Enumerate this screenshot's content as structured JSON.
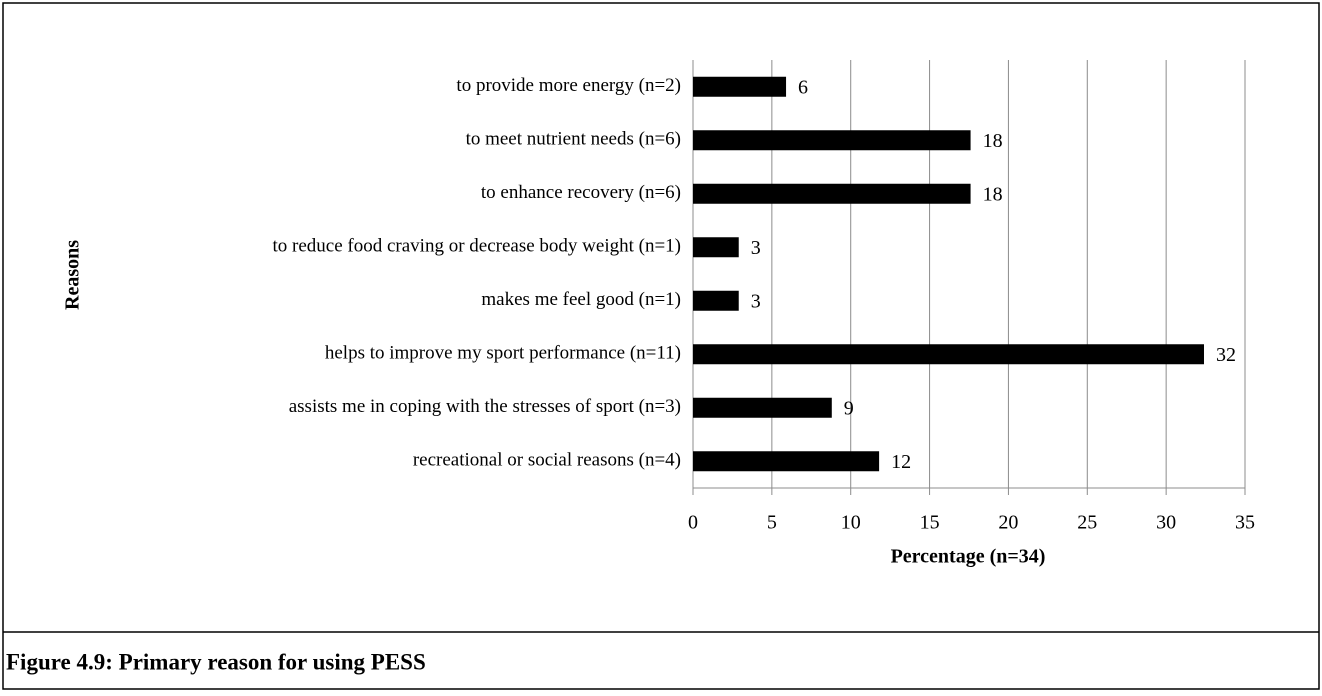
{
  "chart_data": {
    "type": "barh",
    "caption": "Figure 4.9: Primary reason for using PESS",
    "xlabel": "Percentage (n=34)",
    "ylabel": "Reasons",
    "categories": [
      "to provide more energy (n=2)",
      "to meet nutrient needs (n=6)",
      "to enhance recovery (n=6)",
      "to reduce food craving or decrease body weight (n=1)",
      "makes me feel good (n=1)",
      "helps to improve my sport performance (n=11)",
      "assists me in coping with the stresses of sport (n=3)",
      "recreational or social reasons (n=4)"
    ],
    "values": [
      5.9,
      17.6,
      17.6,
      2.9,
      2.9,
      32.4,
      8.8,
      11.8
    ],
    "value_labels": [
      "6",
      "18",
      "18",
      "3",
      "3",
      "32",
      "9",
      "12"
    ],
    "color": "#000000",
    "xlim": [
      0,
      35
    ],
    "xticks": [
      0,
      5,
      10,
      15,
      20,
      25,
      30,
      35
    ],
    "grid": true
  }
}
